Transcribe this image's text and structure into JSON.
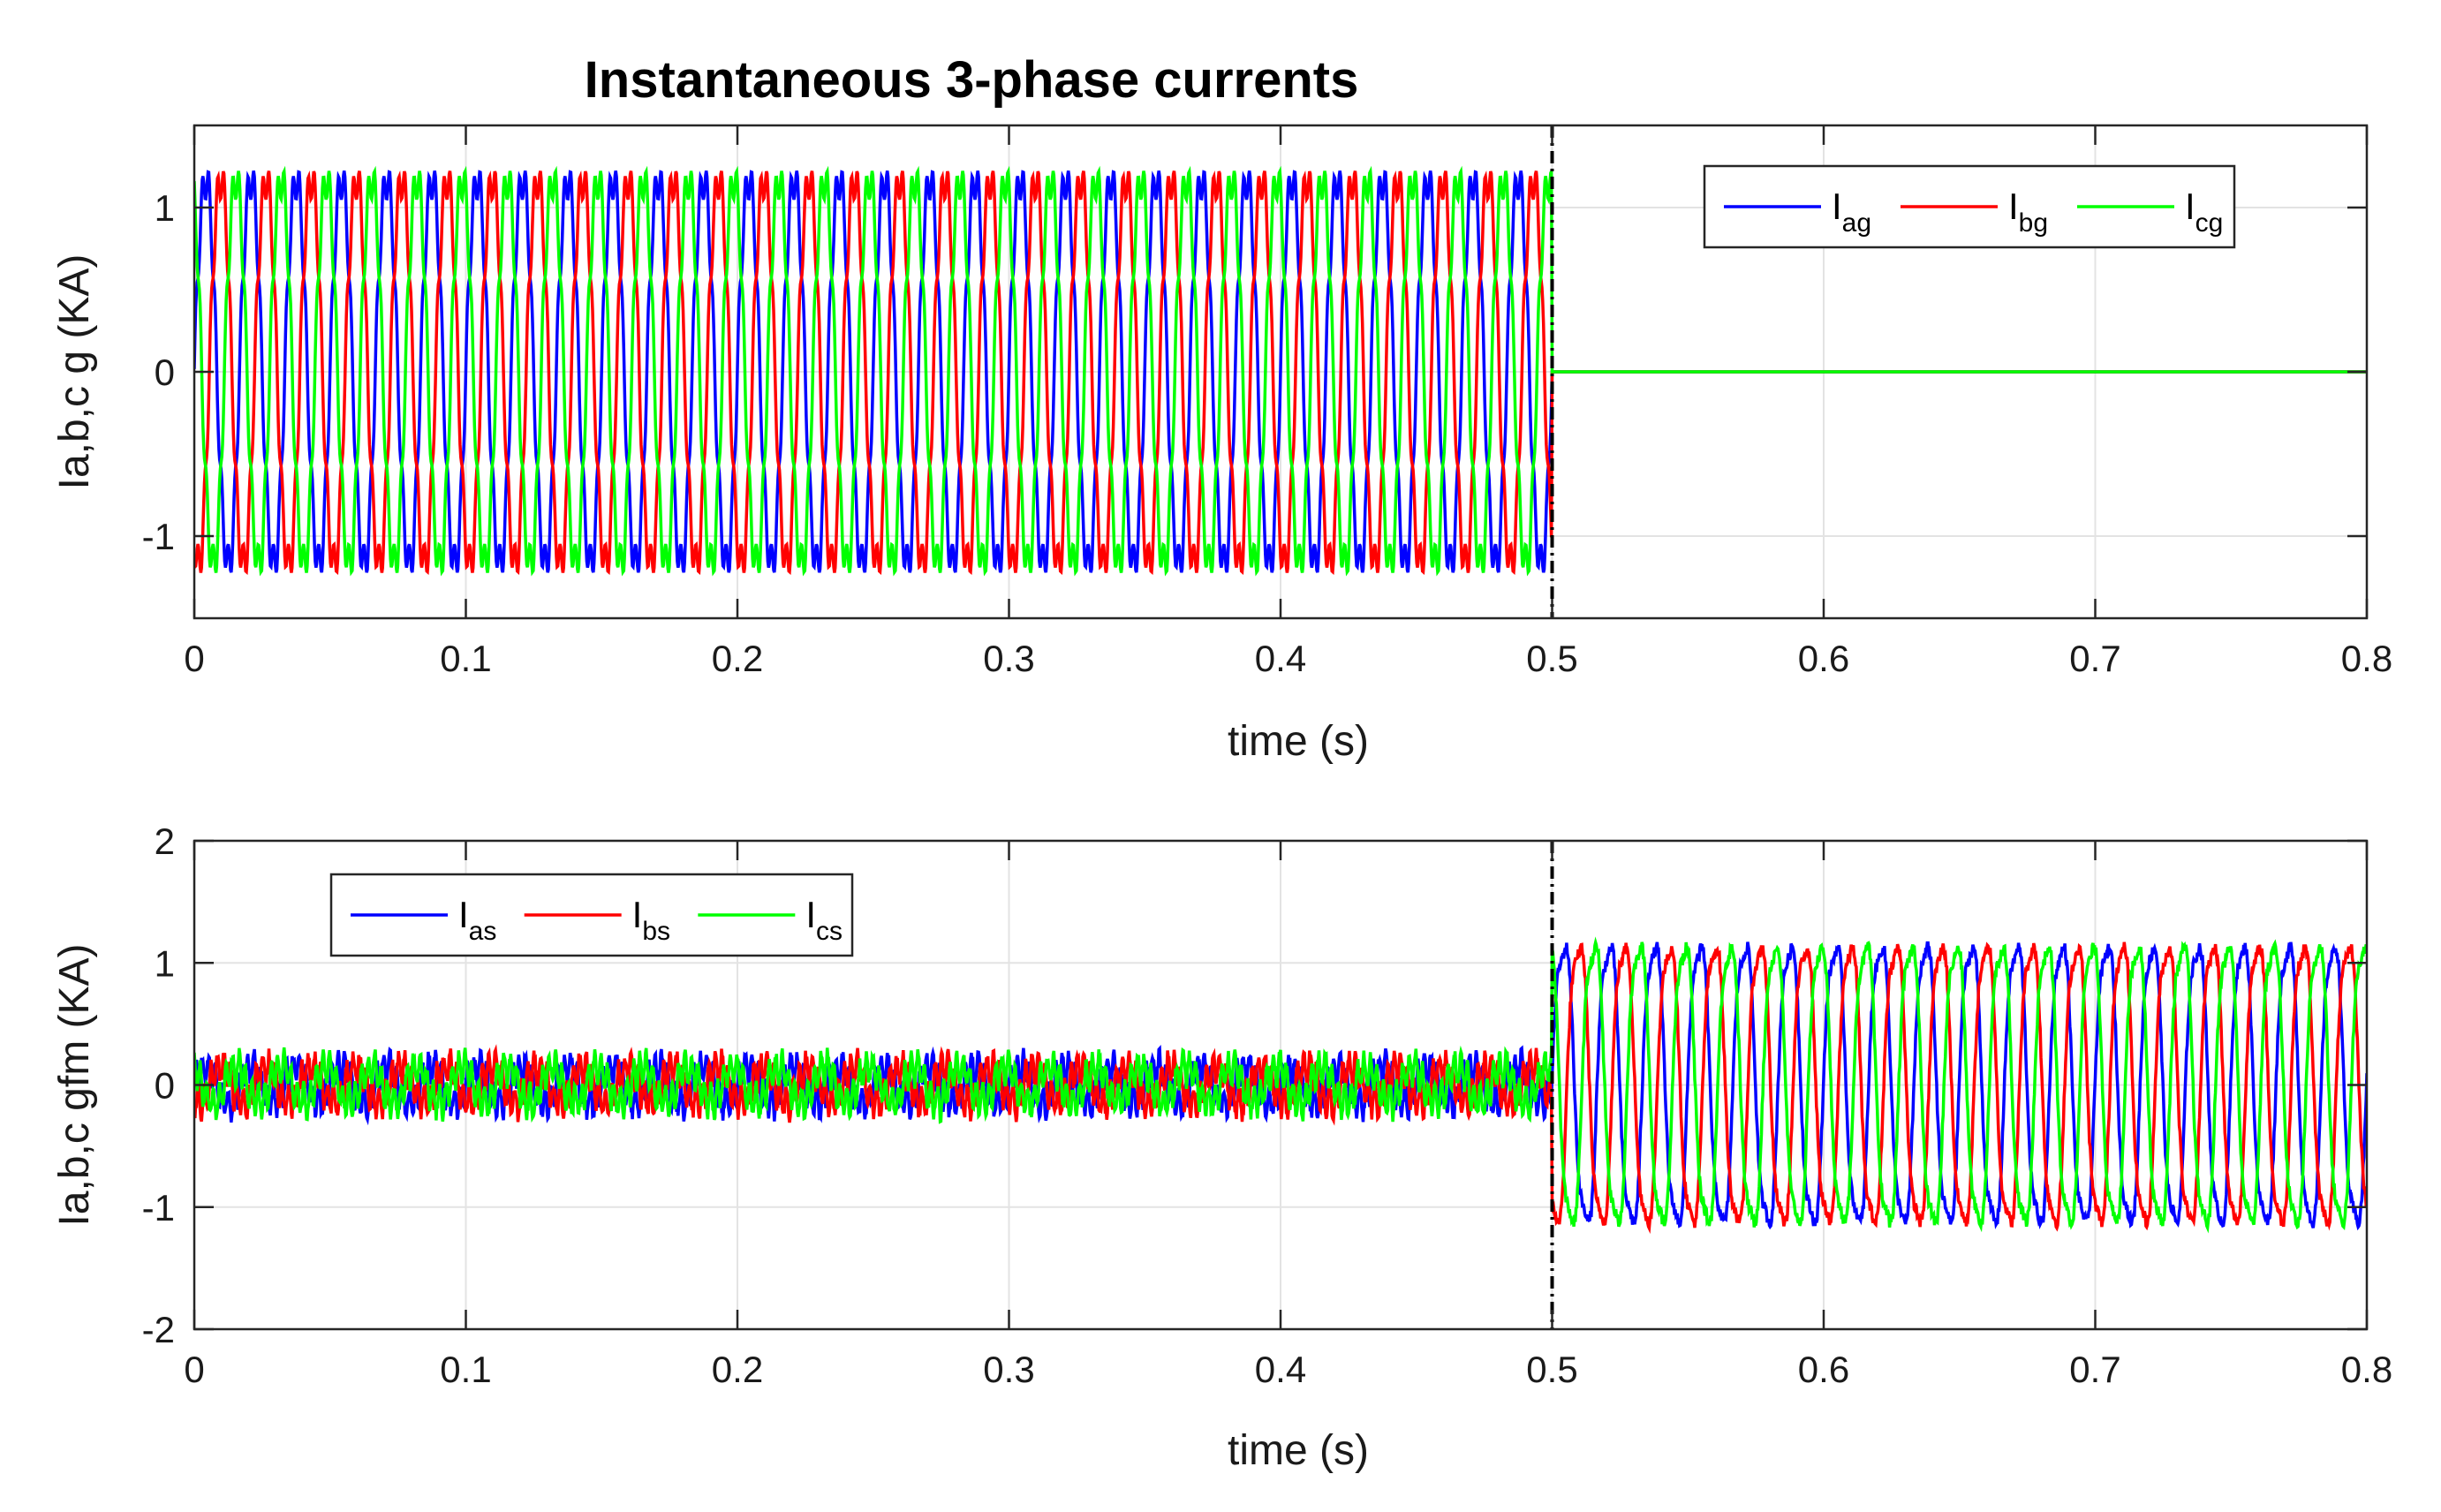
{
  "figure_title": "Instantaneous 3-phase currents",
  "colors": {
    "phase_a": "#0000ff",
    "phase_b": "#ff0000",
    "phase_c": "#00ff00",
    "axes": "#262626",
    "grid": "#e3e3e3",
    "event_line": "#000000"
  },
  "chart_data": [
    {
      "type": "line",
      "title": "Instantaneous 3-phase currents",
      "xlabel": "time (s)",
      "ylabel": "Ia,b,c g (KA)",
      "xlim": [
        0,
        0.8
      ],
      "ylim": [
        -1.5,
        1.5
      ],
      "xticks": [
        0,
        0.1,
        0.2,
        0.3,
        0.4,
        0.5,
        0.6,
        0.7,
        0.8
      ],
      "xtick_labels": [
        "0",
        "0.1",
        "0.2",
        "0.3",
        "0.4",
        "0.5",
        "0.6",
        "0.7",
        "0.8"
      ],
      "yticks": [
        -1,
        0,
        1
      ],
      "ytick_labels": [
        "-1",
        "0",
        "1"
      ],
      "grid": true,
      "legend_position": "top-right",
      "legend_orientation": "horizontal",
      "event_line_x": 0.5,
      "series": [
        {
          "name": "I",
          "sub": "ag",
          "color": "#0000ff",
          "frequency_hz": 60,
          "phase_deg": 0,
          "amplitude_before": 1.2,
          "amplitude_after": 0,
          "noise": 0.0,
          "ripple": 0.03
        },
        {
          "name": "I",
          "sub": "bg",
          "color": "#ff0000",
          "frequency_hz": 60,
          "phase_deg": -120,
          "amplitude_before": 1.2,
          "amplitude_after": 0,
          "noise": 0.0,
          "ripple": 0.03
        },
        {
          "name": "I",
          "sub": "cg",
          "color": "#00ff00",
          "frequency_hz": 60,
          "phase_deg": 120,
          "amplitude_before": 1.2,
          "amplitude_after": 0,
          "noise": 0.0,
          "ripple": 0.03
        }
      ]
    },
    {
      "type": "line",
      "title": "",
      "xlabel": "time (s)",
      "ylabel": "Ia,b,c gfm (KA)",
      "xlim": [
        0,
        0.8
      ],
      "ylim": [
        -2,
        2
      ],
      "xticks": [
        0,
        0.1,
        0.2,
        0.3,
        0.4,
        0.5,
        0.6,
        0.7,
        0.8
      ],
      "xtick_labels": [
        "0",
        "0.1",
        "0.2",
        "0.3",
        "0.4",
        "0.5",
        "0.6",
        "0.7",
        "0.8"
      ],
      "yticks": [
        -2,
        -1,
        0,
        1,
        2
      ],
      "ytick_labels": [
        "-2",
        "-1",
        "0",
        "1",
        "2"
      ],
      "grid": true,
      "legend_position": "top-left",
      "legend_orientation": "horizontal",
      "event_line_x": 0.5,
      "series": [
        {
          "name": "I",
          "sub": "as",
          "color": "#0000ff",
          "frequency_hz": 60,
          "phase_deg": 0,
          "amplitude_before": 0.15,
          "amplitude_after": 1.2,
          "noise": 0.1,
          "ripple": 0.12
        },
        {
          "name": "I",
          "sub": "bs",
          "color": "#ff0000",
          "frequency_hz": 60,
          "phase_deg": -120,
          "amplitude_before": 0.15,
          "amplitude_after": 1.2,
          "noise": 0.1,
          "ripple": 0.12
        },
        {
          "name": "I",
          "sub": "cs",
          "color": "#00ff00",
          "frequency_hz": 60,
          "phase_deg": 120,
          "amplitude_before": 0.15,
          "amplitude_after": 1.2,
          "noise": 0.1,
          "ripple": 0.12
        }
      ]
    }
  ]
}
